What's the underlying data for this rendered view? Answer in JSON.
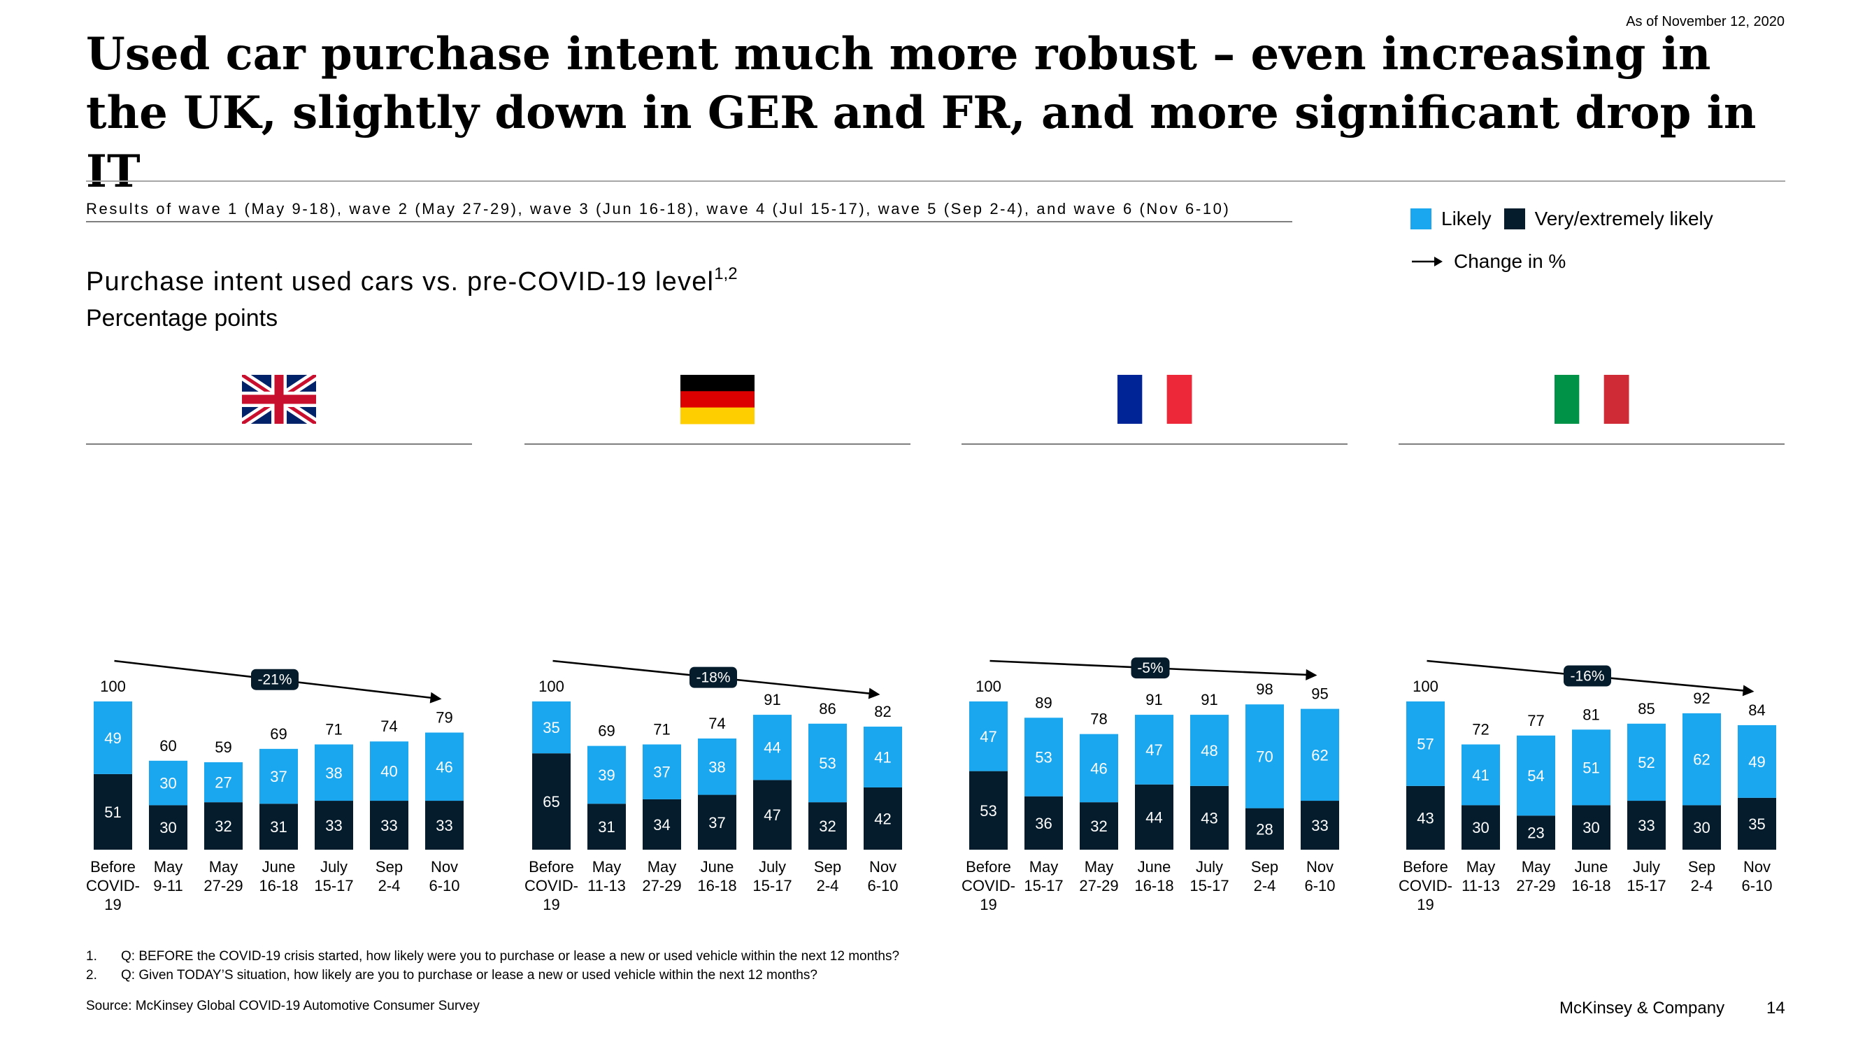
{
  "header": {
    "as_of": "As of November 12, 2020",
    "title": "Used car purchase intent much more robust – even increasing in the UK, slightly down in GER and FR, and more significant drop in IT",
    "waves_note": "Results of wave 1 (May 9-18), wave 2 (May 27-29), wave 3 (Jun 16-18), wave 4 (Jul 15-17), wave 5 (Sep 2-4), and wave 6 (Nov 6-10)",
    "subtitle": "Purchase intent used cars vs. pre-COVID-19 level",
    "subtitle_sup": "1,2",
    "units": "Percentage points"
  },
  "legend": {
    "likely": "Likely",
    "very_likely": "Very/extremely likely",
    "change": "Change in %"
  },
  "colors": {
    "likely": "#1aa7f0",
    "very_likely": "#051c2c",
    "axis": "#7f7f7f"
  },
  "chart_data": [
    {
      "type": "bar",
      "stacked": true,
      "country": "UK",
      "flag": "uk-flag-icon",
      "categories": [
        [
          "Before",
          "COVID-",
          "19"
        ],
        [
          "May",
          "9-11"
        ],
        [
          "May",
          "27-29"
        ],
        [
          "June",
          "16-18"
        ],
        [
          "July",
          "15-17"
        ],
        [
          "Sep",
          "2-4"
        ],
        [
          "Nov",
          "6-10"
        ]
      ],
      "series": [
        {
          "name": "Very/extremely likely",
          "values": [
            51,
            30,
            32,
            31,
            33,
            33,
            33
          ]
        },
        {
          "name": "Likely",
          "values": [
            49,
            30,
            27,
            37,
            38,
            40,
            46
          ]
        }
      ],
      "totals": [
        100,
        60,
        59,
        69,
        71,
        74,
        79
      ],
      "change": "-21%",
      "ylim": [
        0,
        100
      ]
    },
    {
      "type": "bar",
      "stacked": true,
      "country": "Germany",
      "flag": "germany-flag-icon",
      "categories": [
        [
          "Before",
          "COVID-",
          "19"
        ],
        [
          "May",
          "11-13"
        ],
        [
          "May",
          "27-29"
        ],
        [
          "June",
          "16-18"
        ],
        [
          "July",
          "15-17"
        ],
        [
          "Sep",
          "2-4"
        ],
        [
          "Nov",
          "6-10"
        ]
      ],
      "series": [
        {
          "name": "Very/extremely likely",
          "values": [
            65,
            31,
            34,
            37,
            47,
            32,
            42
          ]
        },
        {
          "name": "Likely",
          "values": [
            35,
            39,
            37,
            38,
            44,
            53,
            41
          ]
        }
      ],
      "totals": [
        100,
        69,
        71,
        74,
        91,
        86,
        82
      ],
      "change": "-18%",
      "ylim": [
        0,
        100
      ]
    },
    {
      "type": "bar",
      "stacked": true,
      "country": "France",
      "flag": "france-flag-icon",
      "categories": [
        [
          "Before",
          "COVID-",
          "19"
        ],
        [
          "May",
          "15-17"
        ],
        [
          "May",
          "27-29"
        ],
        [
          "June",
          "16-18"
        ],
        [
          "July",
          "15-17"
        ],
        [
          "Sep",
          "2-4"
        ],
        [
          "Nov",
          "6-10"
        ]
      ],
      "series": [
        {
          "name": "Very/extremely likely",
          "values": [
            53,
            36,
            32,
            44,
            43,
            28,
            33
          ]
        },
        {
          "name": "Likely",
          "values": [
            47,
            53,
            46,
            47,
            48,
            70,
            62
          ]
        }
      ],
      "totals": [
        100,
        89,
        78,
        91,
        91,
        98,
        95
      ],
      "change": "-5%",
      "ylim": [
        0,
        100
      ]
    },
    {
      "type": "bar",
      "stacked": true,
      "country": "Italy",
      "flag": "italy-flag-icon",
      "categories": [
        [
          "Before",
          "COVID-",
          "19"
        ],
        [
          "May",
          "11-13"
        ],
        [
          "May",
          "27-29"
        ],
        [
          "June",
          "16-18"
        ],
        [
          "July",
          "15-17"
        ],
        [
          "Sep",
          "2-4"
        ],
        [
          "Nov",
          "6-10"
        ]
      ],
      "series": [
        {
          "name": "Very/extremely likely",
          "values": [
            43,
            30,
            23,
            30,
            33,
            30,
            35
          ]
        },
        {
          "name": "Likely",
          "values": [
            57,
            41,
            54,
            51,
            52,
            62,
            49
          ]
        }
      ],
      "totals": [
        100,
        72,
        77,
        81,
        85,
        92,
        84
      ],
      "change": "-16%",
      "ylim": [
        0,
        100
      ]
    }
  ],
  "footnotes": [
    {
      "num": "1.",
      "text": "Q: BEFORE the COVID-19 crisis started, how likely were you to purchase or lease a new or used vehicle within the next 12 months?"
    },
    {
      "num": "2.",
      "text": "Q: Given TODAY’S situation, how likely are you to purchase or lease a new or used vehicle within the next 12 months?"
    }
  ],
  "footer": {
    "source": "Source: McKinsey Global COVID-19 Automotive Consumer Survey",
    "brand": "McKinsey & Company",
    "page": "14"
  }
}
